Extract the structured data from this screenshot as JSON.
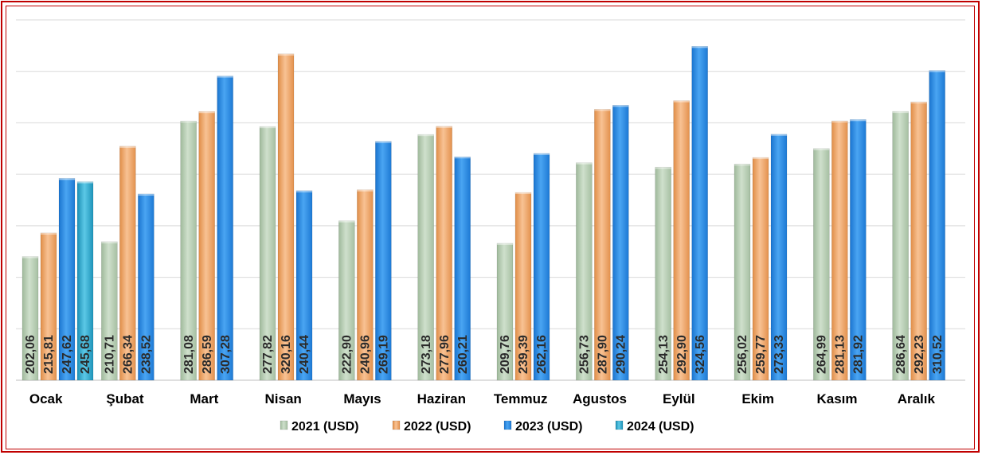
{
  "chart_data": {
    "type": "bar",
    "title": "",
    "xlabel": "",
    "ylabel": "",
    "ylim": [
      130,
      340
    ],
    "grid": true,
    "legend_position": "bottom",
    "categories": [
      "Ocak",
      "Şubat",
      "Mart",
      "Nisan",
      "Mayıs",
      "Haziran",
      "Temmuz",
      "Agustos",
      "Eylül",
      "Ekim",
      "Kasım",
      "Aralık"
    ],
    "series": [
      {
        "name": "2021 (USD)",
        "color": "#b7cdb4",
        "values": [
          202.06,
          210.71,
          281.08,
          277.82,
          222.9,
          273.18,
          209.76,
          256.73,
          254.13,
          256.02,
          264.99,
          286.64
        ],
        "labels": [
          "202,06",
          "210,71",
          "281,08",
          "277,82",
          "222,90",
          "273,18",
          "209,76",
          "256,73",
          "254,13",
          "256,02",
          "264,99",
          "286,64"
        ]
      },
      {
        "name": "2022 (USD)",
        "color": "#f0a869",
        "values": [
          215.81,
          266.34,
          286.59,
          320.16,
          240.96,
          277.96,
          239.39,
          287.9,
          292.9,
          259.77,
          281.13,
          292.23
        ],
        "labels": [
          "215,81",
          "266,34",
          "286,59",
          "320,16",
          "240,96",
          "277,96",
          "239,39",
          "287,90",
          "292,90",
          "259,77",
          "281,13",
          "292,23"
        ]
      },
      {
        "name": "2023 (USD)",
        "color": "#2b8fe8",
        "values": [
          247.62,
          238.52,
          307.28,
          240.44,
          269.19,
          260.21,
          262.16,
          290.24,
          324.56,
          273.33,
          281.92,
          310.52
        ],
        "labels": [
          "247,62",
          "238,52",
          "307,28",
          "240,44",
          "269,19",
          "260,21",
          "262,16",
          "290,24",
          "324,56",
          "273,33",
          "281,92",
          "310,52"
        ]
      },
      {
        "name": "2024 (USD)",
        "color": "#37b3d6",
        "values": [
          245.68,
          null,
          null,
          null,
          null,
          null,
          null,
          null,
          null,
          null,
          null,
          null
        ],
        "labels": [
          "245,68",
          null,
          null,
          null,
          null,
          null,
          null,
          null,
          null,
          null,
          null,
          null
        ]
      }
    ]
  }
}
